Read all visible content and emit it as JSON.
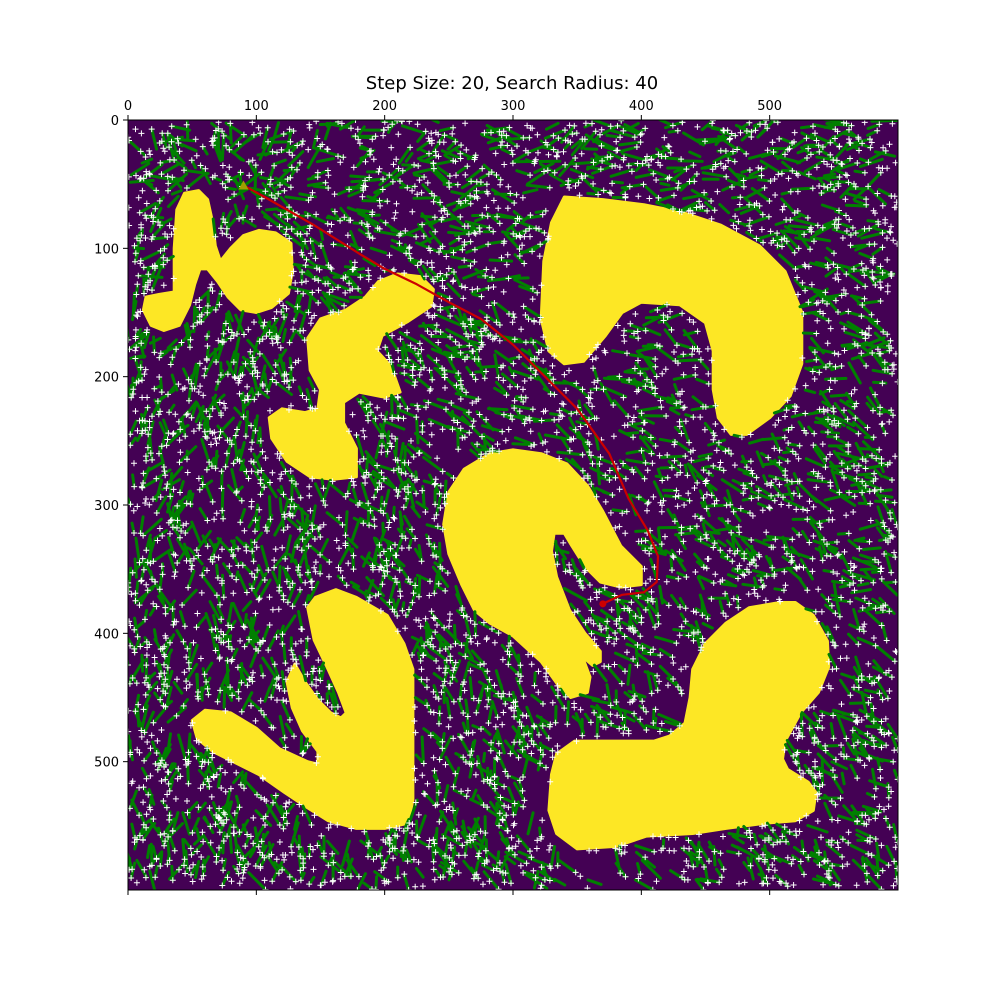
{
  "chart_data": {
    "type": "heatmap",
    "title": "Step Size: 20, Search Radius: 40",
    "xlabel": "",
    "ylabel": "",
    "xlim": [
      0,
      600
    ],
    "ylim": [
      600,
      0
    ],
    "x_ticks": [
      0,
      100,
      200,
      300,
      400,
      500
    ],
    "y_ticks": [
      0,
      100,
      200,
      300,
      400,
      500
    ],
    "x_tick_position": "top",
    "grid": false,
    "colors": {
      "free_space": "#440154",
      "obstacle": "#fde725",
      "tree_edges": "#008000",
      "samples": "#ffffff",
      "path": "#cc0000",
      "start_marker": "#a0a000"
    },
    "obstacles": [
      [
        [
          36,
          100
        ],
        [
          38,
          70
        ],
        [
          44,
          57
        ],
        [
          55,
          55
        ],
        [
          62,
          62
        ],
        [
          66,
          80
        ],
        [
          68,
          98
        ],
        [
          72,
          110
        ],
        [
          80,
          100
        ],
        [
          90,
          90
        ],
        [
          102,
          86
        ],
        [
          115,
          88
        ],
        [
          127,
          96
        ],
        [
          128,
          118
        ],
        [
          125,
          135
        ],
        [
          112,
          146
        ],
        [
          100,
          150
        ],
        [
          88,
          148
        ],
        [
          78,
          138
        ],
        [
          70,
          126
        ],
        [
          62,
          116
        ],
        [
          56,
          116
        ],
        [
          52,
          128
        ],
        [
          48,
          144
        ],
        [
          40,
          160
        ],
        [
          28,
          164
        ],
        [
          18,
          160
        ],
        [
          12,
          148
        ],
        [
          14,
          138
        ],
        [
          24,
          136
        ],
        [
          36,
          134
        ],
        [
          36,
          115
        ]
      ],
      [
        [
          140,
          170
        ],
        [
          150,
          155
        ],
        [
          170,
          148
        ],
        [
          185,
          138
        ],
        [
          195,
          126
        ],
        [
          210,
          120
        ],
        [
          228,
          122
        ],
        [
          238,
          132
        ],
        [
          236,
          145
        ],
        [
          218,
          157
        ],
        [
          198,
          168
        ],
        [
          194,
          180
        ],
        [
          205,
          192
        ],
        [
          212,
          212
        ],
        [
          200,
          216
        ],
        [
          180,
          212
        ],
        [
          168,
          220
        ],
        [
          168,
          236
        ],
        [
          178,
          256
        ],
        [
          178,
          278
        ],
        [
          160,
          280
        ],
        [
          142,
          278
        ],
        [
          124,
          266
        ],
        [
          112,
          248
        ],
        [
          110,
          232
        ],
        [
          120,
          225
        ],
        [
          138,
          228
        ],
        [
          148,
          225
        ],
        [
          150,
          210
        ],
        [
          142,
          195
        ]
      ],
      [
        [
          340,
          60
        ],
        [
          370,
          62
        ],
        [
          402,
          66
        ],
        [
          432,
          72
        ],
        [
          462,
          82
        ],
        [
          492,
          98
        ],
        [
          512,
          118
        ],
        [
          525,
          150
        ],
        [
          525,
          190
        ],
        [
          516,
          215
        ],
        [
          500,
          232
        ],
        [
          482,
          245
        ],
        [
          470,
          245
        ],
        [
          460,
          232
        ],
        [
          456,
          210
        ],
        [
          456,
          180
        ],
        [
          450,
          158
        ],
        [
          430,
          144
        ],
        [
          400,
          142
        ],
        [
          385,
          150
        ],
        [
          372,
          168
        ],
        [
          355,
          188
        ],
        [
          340,
          190
        ],
        [
          328,
          180
        ],
        [
          322,
          155
        ],
        [
          324,
          110
        ],
        [
          330,
          80
        ]
      ],
      [
        [
          250,
          290
        ],
        [
          262,
          272
        ],
        [
          282,
          260
        ],
        [
          300,
          257
        ],
        [
          322,
          260
        ],
        [
          342,
          268
        ],
        [
          358,
          285
        ],
        [
          370,
          305
        ],
        [
          384,
          332
        ],
        [
          400,
          348
        ],
        [
          400,
          362
        ],
        [
          384,
          364
        ],
        [
          368,
          360
        ],
        [
          356,
          348
        ],
        [
          346,
          332
        ],
        [
          340,
          322
        ],
        [
          332,
          322
        ],
        [
          330,
          336
        ],
        [
          334,
          356
        ],
        [
          344,
          382
        ],
        [
          356,
          400
        ],
        [
          368,
          414
        ],
        [
          368,
          422
        ],
        [
          362,
          425
        ],
        [
          354,
          418
        ],
        [
          360,
          434
        ],
        [
          358,
          446
        ],
        [
          345,
          450
        ],
        [
          335,
          440
        ],
        [
          322,
          422
        ],
        [
          300,
          402
        ],
        [
          282,
          392
        ],
        [
          270,
          382
        ],
        [
          260,
          362
        ],
        [
          250,
          338
        ],
        [
          246,
          315
        ]
      ],
      [
        [
          140,
          380
        ],
        [
          146,
          372
        ],
        [
          162,
          366
        ],
        [
          178,
          372
        ],
        [
          202,
          386
        ],
        [
          215,
          408
        ],
        [
          222,
          428
        ],
        [
          222,
          466
        ],
        [
          222,
          506
        ],
        [
          222,
          530
        ],
        [
          218,
          548
        ],
        [
          200,
          552
        ],
        [
          178,
          552
        ],
        [
          156,
          546
        ],
        [
          140,
          536
        ],
        [
          122,
          524
        ],
        [
          102,
          510
        ],
        [
          82,
          500
        ],
        [
          66,
          492
        ],
        [
          54,
          482
        ],
        [
          50,
          468
        ],
        [
          60,
          460
        ],
        [
          80,
          462
        ],
        [
          100,
          474
        ],
        [
          118,
          490
        ],
        [
          140,
          500
        ],
        [
          148,
          502
        ],
        [
          148,
          492
        ],
        [
          136,
          476
        ],
        [
          128,
          458
        ],
        [
          124,
          438
        ],
        [
          130,
          424
        ],
        [
          138,
          438
        ],
        [
          148,
          452
        ],
        [
          158,
          462
        ],
        [
          166,
          466
        ],
        [
          170,
          462
        ],
        [
          164,
          446
        ],
        [
          155,
          426
        ],
        [
          145,
          405
        ]
      ],
      [
        [
          330,
          510
        ],
        [
          334,
          494
        ],
        [
          348,
          484
        ],
        [
          380,
          484
        ],
        [
          410,
          484
        ],
        [
          422,
          480
        ],
        [
          434,
          470
        ],
        [
          438,
          450
        ],
        [
          440,
          428
        ],
        [
          450,
          408
        ],
        [
          466,
          392
        ],
        [
          484,
          380
        ],
        [
          508,
          376
        ],
        [
          520,
          376
        ],
        [
          534,
          386
        ],
        [
          545,
          406
        ],
        [
          546,
          426
        ],
        [
          538,
          446
        ],
        [
          524,
          462
        ],
        [
          512,
          484
        ],
        [
          510,
          498
        ],
        [
          514,
          506
        ],
        [
          530,
          516
        ],
        [
          536,
          524
        ],
        [
          534,
          538
        ],
        [
          520,
          546
        ],
        [
          496,
          548
        ],
        [
          466,
          552
        ],
        [
          440,
          556
        ],
        [
          404,
          558
        ],
        [
          380,
          566
        ],
        [
          350,
          568
        ],
        [
          334,
          556
        ],
        [
          328,
          538
        ]
      ]
    ],
    "path": {
      "name": "",
      "x": [
        90,
        110,
        145,
        180,
        200,
        225,
        250,
        275,
        300,
        330,
        350,
        375,
        390,
        405,
        413,
        412,
        402,
        385,
        370
      ],
      "y": [
        51,
        62,
        82,
        104,
        116,
        128,
        142,
        155,
        175,
        205,
        225,
        260,
        295,
        320,
        340,
        360,
        368,
        370,
        377
      ]
    },
    "start": {
      "x": 90,
      "y": 51
    }
  }
}
